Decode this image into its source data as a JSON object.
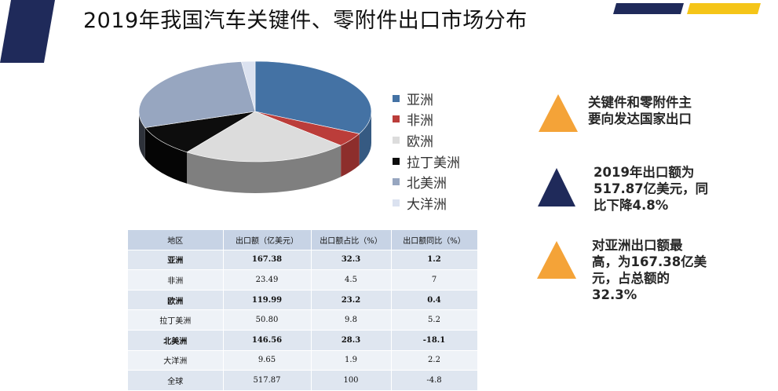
{
  "header": {
    "title": "2019年我国汽车关键件、零附件出口市场分布"
  },
  "colors": {
    "navy": "#1f2a5a",
    "accent_yellow": "#f5c518",
    "orange_triangle": "#f4a338",
    "navy_triangle": "#1f2a5a"
  },
  "chart_data": {
    "type": "pie",
    "three_d": true,
    "categories": [
      "亚洲",
      "非洲",
      "欧洲",
      "拉丁美洲",
      "北美洲",
      "大洋洲"
    ],
    "values": [
      32.3,
      4.5,
      23.2,
      9.8,
      28.3,
      1.9
    ],
    "unit": "%",
    "colors": [
      "#4472a4",
      "#bb3d3a",
      "#dcdcdc",
      "#0d0d0d",
      "#97a6c0",
      "#dbe2f0"
    ],
    "legend_position": "right"
  },
  "legend": [
    {
      "label": "亚洲",
      "color": "#4472a4"
    },
    {
      "label": "非洲",
      "color": "#bb3d3a"
    },
    {
      "label": "欧洲",
      "color": "#dcdcdc"
    },
    {
      "label": "拉丁美洲",
      "color": "#0d0d0d"
    },
    {
      "label": "北美洲",
      "color": "#97a6c0"
    },
    {
      "label": "大洋洲",
      "color": "#dbe2f0"
    }
  ],
  "table": {
    "headers": [
      "地区",
      "出口额（亿美元）",
      "出口额占比（%）",
      "出口额同比（%）"
    ],
    "rows": [
      {
        "region": "亚洲",
        "export": "167.38",
        "share": "32.3",
        "yoy": "1.2",
        "bold": true
      },
      {
        "region": "非洲",
        "export": "23.49",
        "share": "4.5",
        "yoy": "7",
        "bold": false
      },
      {
        "region": "欧洲",
        "export": "119.99",
        "share": "23.2",
        "yoy": "0.4",
        "bold": true
      },
      {
        "region": "拉丁美洲",
        "export": "50.80",
        "share": "9.8",
        "yoy": "5.2",
        "bold": false
      },
      {
        "region": "北美洲",
        "export": "146.56",
        "share": "28.3",
        "yoy": "-18.1",
        "bold": true
      },
      {
        "region": "大洋洲",
        "export": "9.65",
        "share": "1.9",
        "yoy": "2.2",
        "bold": false
      },
      {
        "region": "全球",
        "export": "517.87",
        "share": "100",
        "yoy": "-4.8",
        "bold": false
      }
    ]
  },
  "bullets": [
    {
      "color": "#f4a338",
      "lines": [
        "关键件和零附件主",
        "要向发达国家出口"
      ]
    },
    {
      "color": "#1f2a5a",
      "lines": [
        "2019年出口额为",
        "517.87亿美元，同",
        "比下降4.8%"
      ]
    },
    {
      "color": "#f4a338",
      "lines": [
        "对亚洲出口额最",
        "高，为167.38亿美",
        "元，占总额的",
        "32.3%"
      ]
    }
  ]
}
